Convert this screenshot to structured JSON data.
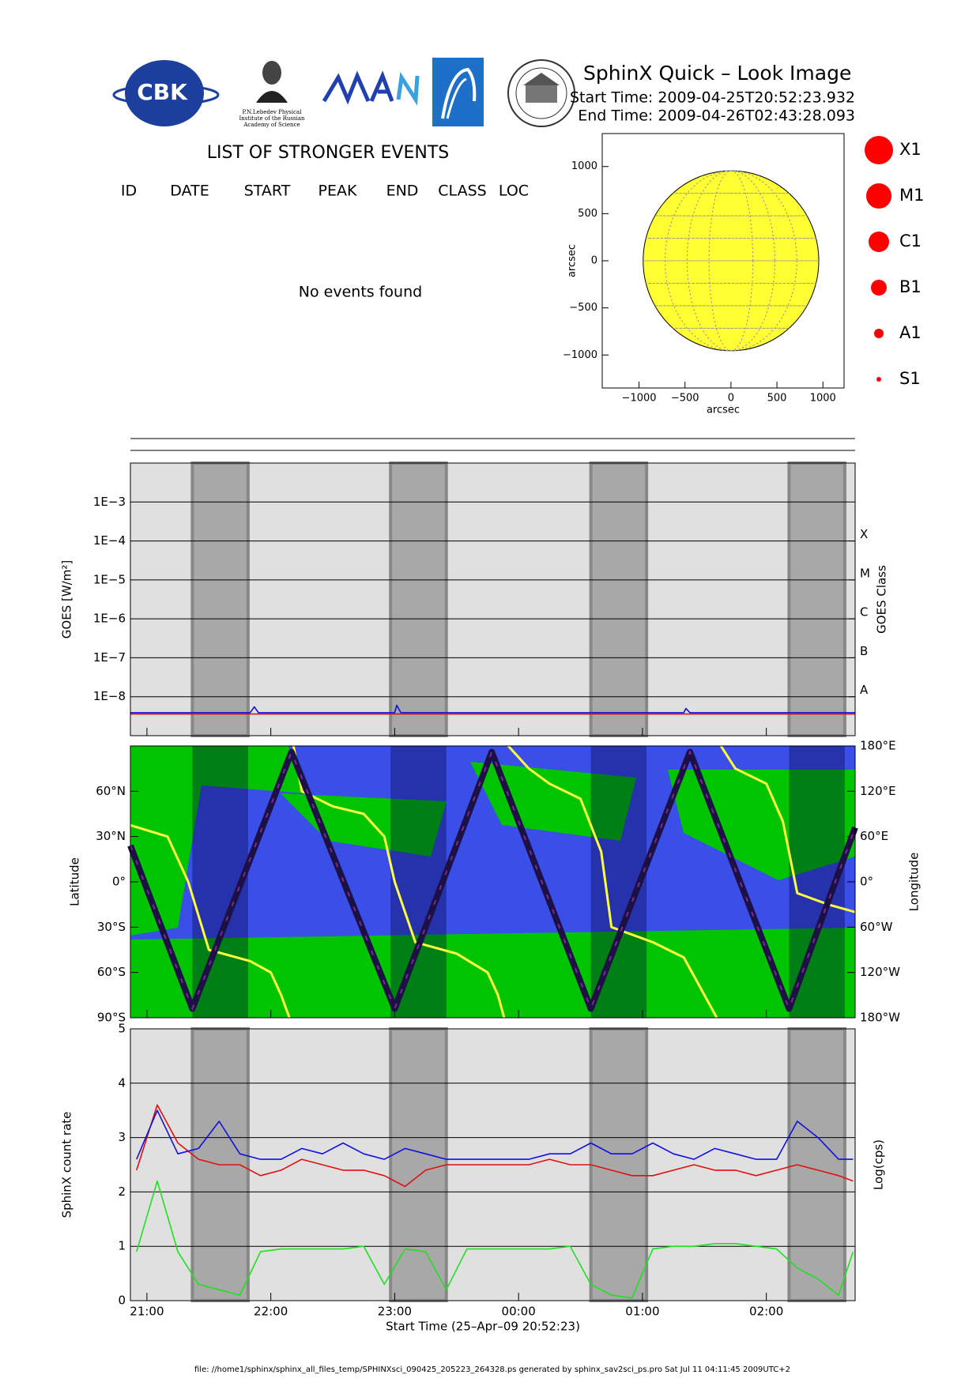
{
  "header": {
    "title": "SphinX Quick – Look Image",
    "start": "Start Time: 2009-04-25T20:52:23.932",
    "end": "End Time: 2009-04-26T02:43:28.093",
    "logo_cbk": "CBK",
    "logo_lebedev": [
      "P.N.Lebedev Physical",
      "Institute of the Russian",
      "Academy of Science"
    ]
  },
  "events": {
    "title": "LIST OF STRONGER EVENTS",
    "columns": [
      "ID",
      "DATE",
      "START",
      "PEAK",
      "END",
      "CLASS",
      "LOC"
    ],
    "message": "No events found"
  },
  "legend": [
    "X1",
    "M1",
    "C1",
    "B1",
    "A1",
    "S1"
  ],
  "footer": {
    "xlabel": "Start Time (25–Apr–09 20:52:23)",
    "file": "file: //home1/sphinx/sphinx_all_files_temp/SPHINXsci_090425_205223_264328.ps generated by sphinx_sav2sci_ps.pro Sat Jul 11 04:11:45 2009UTC+2"
  },
  "chart_data": [
    {
      "type": "disk",
      "xlabel": "arcsec",
      "ylabel": "arcsec",
      "xlim": [
        -1400,
        1230
      ],
      "ylim": [
        -1350,
        1350
      ],
      "xticks": [
        {
          "value": -1000,
          "label": "−1000"
        },
        {
          "value": -500,
          "label": "−500"
        },
        0,
        500,
        1000
      ],
      "yticks": [
        {
          "value": -1000,
          "label": "−1000"
        },
        {
          "value": -500,
          "label": "−500"
        },
        0,
        500,
        1000
      ],
      "radius": 955,
      "color": "#ffff33"
    },
    {
      "type": "line",
      "log_y": true,
      "grid": true,
      "ylabel": "GOES [W/m²]",
      "y2label": "GOES Class",
      "xlim": [
        "20:52",
        "02:43"
      ],
      "ylim": [
        1e-09,
        0.01
      ],
      "yticks": [
        {
          "value": 0.001,
          "label": "1E−3"
        },
        {
          "value": 0.0001,
          "label": "1E−4"
        },
        {
          "value": 1e-05,
          "label": "1E−5"
        },
        {
          "value": 1e-06,
          "label": "1E−6"
        },
        {
          "value": 1e-07,
          "label": "1E−7"
        },
        {
          "value": 1e-08,
          "label": "1E−8"
        }
      ],
      "class_ticks": [
        {
          "value": 0.0001,
          "label": "X"
        },
        {
          "value": 1e-05,
          "label": "M"
        },
        {
          "value": 1e-06,
          "label": "C"
        },
        {
          "value": 1e-07,
          "label": "B"
        },
        {
          "value": 1e-08,
          "label": "A"
        }
      ],
      "shaded": [
        [
          "21:22",
          "21:49"
        ],
        [
          "22:58",
          "23:25"
        ],
        [
          "00:35",
          "01:02"
        ],
        [
          "02:11",
          "02:38"
        ]
      ],
      "series": [
        {
          "color": "#1010e0",
          "x": [
            "20:52",
            "21:50",
            "21:52",
            "21:54",
            "23:00",
            "23:01",
            "23:03",
            "01:20",
            "01:21",
            "01:23",
            "02:43"
          ],
          "values": [
            3.9e-09,
            3.9e-09,
            5.5e-09,
            3.9e-09,
            3.9e-09,
            6e-09,
            3.9e-09,
            3.9e-09,
            5e-09,
            3.9e-09,
            3.9e-09
          ]
        },
        {
          "color": "#e01010",
          "x": [
            "20:52",
            "02:43"
          ],
          "values": [
            3.6e-09,
            3.6e-09
          ]
        }
      ]
    },
    {
      "type": "line",
      "ylabel": "Latitude",
      "y2label": "Longitude",
      "xlim": [
        "20:52",
        "02:43"
      ],
      "ylim": [
        -90,
        90
      ],
      "y2lim": [
        -180,
        180
      ],
      "yticks": [
        {
          "value": 60,
          "label": "60°N"
        },
        {
          "value": 30,
          "label": "30°N"
        },
        {
          "value": 0,
          "label": "0°"
        },
        {
          "value": -30,
          "label": "30°S"
        },
        {
          "value": -60,
          "label": "60°S"
        },
        {
          "value": -90,
          "label": "90°S"
        }
      ],
      "y2ticks": [
        {
          "value": 180,
          "label": "180°E"
        },
        {
          "value": 120,
          "label": "120°E"
        },
        {
          "value": 60,
          "label": "60°E"
        },
        {
          "value": 0,
          "label": "0°"
        },
        {
          "value": -60,
          "label": "60°W"
        },
        {
          "value": -120,
          "label": "120°W"
        },
        {
          "value": -180,
          "label": "180°W"
        }
      ],
      "series": [
        {
          "color": "#ffff40",
          "axis": "y2",
          "x": [
            "20:52",
            "21:10",
            "21:20",
            "21:30",
            "21:50",
            "22:00",
            "22:05",
            "22:09",
            "22:10",
            "22:11",
            "22:15",
            "22:30",
            "22:45",
            "22:55",
            "23:00",
            "23:10",
            "23:30",
            "23:45",
            "23:50",
            "23:53",
            "23:54",
            "23:55",
            "00:05",
            "00:15",
            "00:30",
            "00:40",
            "00:45",
            "01:05",
            "01:20",
            "01:30",
            "01:36",
            "01:37",
            "01:38",
            "01:45",
            "02:00",
            "02:08",
            "02:15",
            "02:30",
            "02:43"
          ],
          "values": [
            75,
            60,
            0,
            -90,
            -105,
            -120,
            -150,
            -180,
            null,
            180,
            120,
            100,
            90,
            60,
            0,
            -80,
            -95,
            -120,
            -150,
            -180,
            null,
            180,
            150,
            130,
            110,
            40,
            -60,
            -80,
            -100,
            -150,
            -180,
            null,
            180,
            150,
            130,
            80,
            -15,
            -30,
            -40
          ]
        },
        {
          "color": "#1c1044",
          "x": [
            "20:52",
            "21:22",
            "22:10",
            "23:00",
            "23:47",
            "00:35",
            "01:23",
            "02:11",
            "02:43"
          ],
          "values": [
            24,
            -84,
            86,
            -84,
            86,
            -84,
            86,
            -84,
            36
          ]
        }
      ]
    },
    {
      "type": "line",
      "grid": true,
      "ylabel": "SphinX count rate",
      "y2label": "Log(cps)",
      "xlim": [
        "20:52",
        "02:43"
      ],
      "ylim": [
        0,
        5
      ],
      "yticks": [
        0,
        1,
        2,
        3,
        4,
        5
      ],
      "xticks": [
        {
          "value": "21:00",
          "label": "21:00"
        },
        {
          "value": "22:00",
          "label": "22:00"
        },
        {
          "value": "23:00",
          "label": "23:00"
        },
        {
          "value": "00:00",
          "label": "00:00"
        },
        {
          "value": "01:00",
          "label": "01:00"
        },
        {
          "value": "02:00",
          "label": "02:00"
        }
      ],
      "series": [
        {
          "color": "#e01010",
          "x": [
            "20:55",
            "21:05",
            "21:15",
            "21:25",
            "21:35",
            "21:45",
            "21:55",
            "22:05",
            "22:15",
            "22:25",
            "22:35",
            "22:45",
            "22:55",
            "23:05",
            "23:15",
            "23:25",
            "23:35",
            "23:45",
            "23:55",
            "00:05",
            "00:15",
            "00:25",
            "00:35",
            "00:45",
            "00:55",
            "01:05",
            "01:15",
            "01:25",
            "01:35",
            "01:45",
            "01:55",
            "02:05",
            "02:15",
            "02:25",
            "02:35",
            "02:42"
          ],
          "values": [
            2.4,
            3.6,
            2.9,
            2.6,
            2.5,
            2.5,
            2.3,
            2.4,
            2.6,
            2.5,
            2.4,
            2.4,
            2.3,
            2.1,
            2.4,
            2.5,
            2.5,
            2.5,
            2.5,
            2.5,
            2.6,
            2.5,
            2.5,
            2.4,
            2.3,
            2.3,
            2.4,
            2.5,
            2.4,
            2.4,
            2.3,
            2.4,
            2.5,
            2.4,
            2.3,
            2.2
          ]
        },
        {
          "color": "#1010e0",
          "x": [
            "20:55",
            "21:05",
            "21:15",
            "21:25",
            "21:35",
            "21:45",
            "21:55",
            "22:05",
            "22:15",
            "22:25",
            "22:35",
            "22:45",
            "22:55",
            "23:05",
            "23:15",
            "23:25",
            "23:35",
            "23:45",
            "23:55",
            "00:05",
            "00:15",
            "00:25",
            "00:35",
            "00:45",
            "00:55",
            "01:05",
            "01:15",
            "01:25",
            "01:35",
            "01:45",
            "01:55",
            "02:05",
            "02:15",
            "02:25",
            "02:35",
            "02:42"
          ],
          "values": [
            2.6,
            3.5,
            2.7,
            2.8,
            3.3,
            2.7,
            2.6,
            2.6,
            2.8,
            2.7,
            2.9,
            2.7,
            2.6,
            2.8,
            2.7,
            2.6,
            2.6,
            2.6,
            2.6,
            2.6,
            2.7,
            2.7,
            2.9,
            2.7,
            2.7,
            2.9,
            2.7,
            2.6,
            2.8,
            2.7,
            2.6,
            2.6,
            3.3,
            3.0,
            2.6,
            2.6
          ]
        },
        {
          "color": "#20e020",
          "x": [
            "20:55",
            "21:05",
            "21:15",
            "21:25",
            "21:35",
            "21:45",
            "21:55",
            "22:05",
            "22:15",
            "22:25",
            "22:35",
            "22:45",
            "22:55",
            "23:05",
            "23:15",
            "23:25",
            "23:35",
            "23:45",
            "23:55",
            "00:05",
            "00:15",
            "00:25",
            "00:35",
            "00:45",
            "00:55",
            "01:05",
            "01:15",
            "01:25",
            "01:35",
            "01:45",
            "01:55",
            "02:05",
            "02:15",
            "02:25",
            "02:35",
            "02:42"
          ],
          "values": [
            0.9,
            2.2,
            0.9,
            0.3,
            0.2,
            0.1,
            0.9,
            0.95,
            0.95,
            0.95,
            0.95,
            1.0,
            0.3,
            0.95,
            0.9,
            0.2,
            0.95,
            0.95,
            0.95,
            0.95,
            0.95,
            1.0,
            0.3,
            0.1,
            0.05,
            0.95,
            1.0,
            1.0,
            1.05,
            1.05,
            1.0,
            0.95,
            0.6,
            0.4,
            0.1,
            0.9
          ]
        }
      ]
    }
  ]
}
